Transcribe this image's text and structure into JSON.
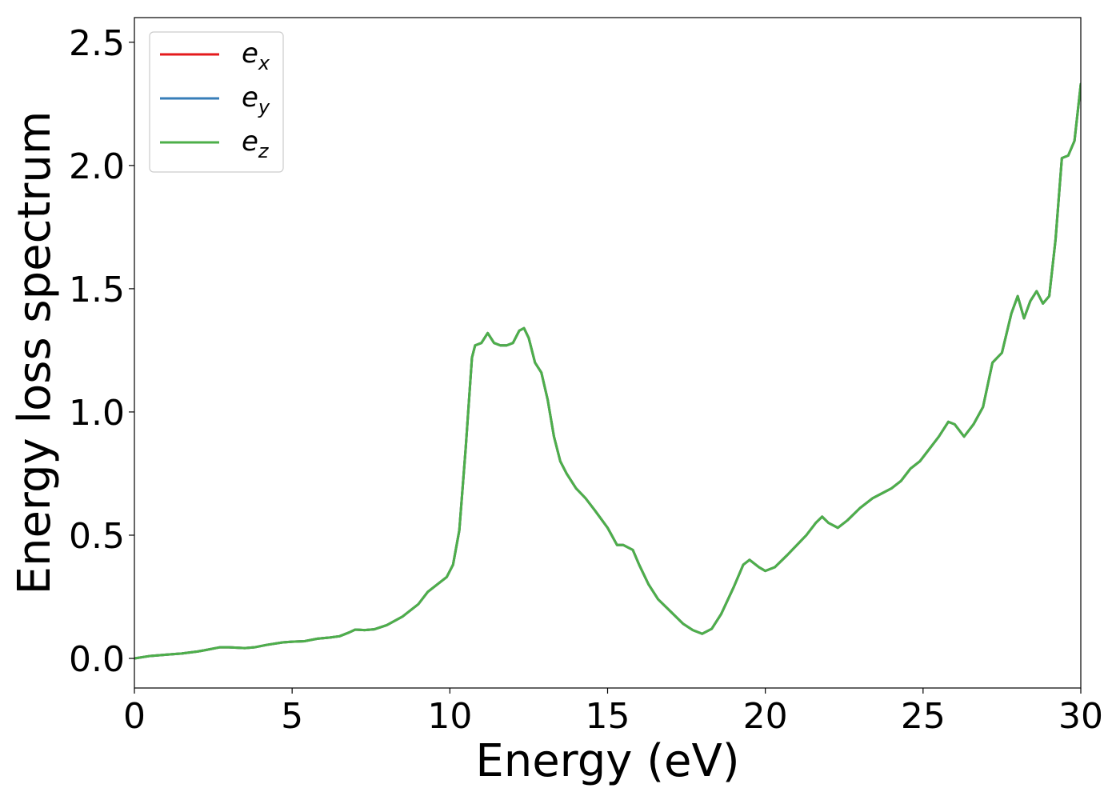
{
  "chart_data": {
    "type": "line",
    "xlabel": "Energy (eV)",
    "ylabel": "Energy loss spectrum",
    "xlim": [
      0,
      30
    ],
    "ylim": [
      -0.12,
      2.6
    ],
    "xticks": [
      0,
      5,
      10,
      15,
      20,
      25,
      30
    ],
    "yticks": [
      0.0,
      0.5,
      1.0,
      1.5,
      2.0,
      2.5
    ],
    "xtick_labels": [
      "0",
      "5",
      "10",
      "15",
      "20",
      "25",
      "30"
    ],
    "ytick_labels": [
      "0.0",
      "0.5",
      "1.0",
      "1.5",
      "2.0",
      "2.5"
    ],
    "grid": false,
    "legend": {
      "position": "top-left",
      "entries": [
        {
          "base": "e",
          "sub": "x",
          "color": "#e41a1c"
        },
        {
          "base": "e",
          "sub": "y",
          "color": "#377eb8"
        },
        {
          "base": "e",
          "sub": "z",
          "color": "#4daf4a"
        }
      ]
    },
    "x": [
      0,
      0.5,
      1.0,
      1.5,
      2.0,
      2.3,
      2.7,
      3.0,
      3.5,
      3.8,
      4.2,
      4.7,
      5.0,
      5.4,
      5.8,
      6.2,
      6.5,
      6.8,
      7.0,
      7.3,
      7.6,
      8.0,
      8.5,
      9.0,
      9.3,
      9.6,
      9.9,
      10.1,
      10.3,
      10.5,
      10.7,
      10.8,
      11.0,
      11.2,
      11.4,
      11.6,
      11.8,
      12.0,
      12.2,
      12.35,
      12.5,
      12.7,
      12.9,
      13.1,
      13.3,
      13.5,
      13.7,
      14.0,
      14.3,
      14.6,
      15.0,
      15.3,
      15.5,
      15.8,
      16.0,
      16.3,
      16.6,
      17.0,
      17.4,
      17.7,
      18.0,
      18.3,
      18.6,
      19.0,
      19.3,
      19.5,
      19.8,
      20.0,
      20.3,
      20.7,
      21.0,
      21.3,
      21.6,
      21.8,
      22.0,
      22.3,
      22.6,
      23.0,
      23.4,
      23.7,
      24.0,
      24.3,
      24.6,
      24.9,
      25.2,
      25.5,
      25.8,
      26.0,
      26.3,
      26.6,
      26.9,
      27.2,
      27.5,
      27.8,
      28.0,
      28.2,
      28.4,
      28.6,
      28.8,
      29.0,
      29.2,
      29.4,
      29.6,
      29.8,
      30.0
    ],
    "series": [
      {
        "name": "e_x",
        "color": "#e41a1c",
        "values": [
          0.0,
          0.01,
          0.015,
          0.02,
          0.028,
          0.035,
          0.045,
          0.045,
          0.042,
          0.045,
          0.055,
          0.065,
          0.068,
          0.07,
          0.08,
          0.085,
          0.09,
          0.105,
          0.117,
          0.115,
          0.118,
          0.135,
          0.17,
          0.22,
          0.27,
          0.3,
          0.33,
          0.38,
          0.52,
          0.85,
          1.22,
          1.27,
          1.28,
          1.32,
          1.28,
          1.27,
          1.27,
          1.28,
          1.33,
          1.34,
          1.3,
          1.2,
          1.16,
          1.05,
          0.9,
          0.8,
          0.75,
          0.69,
          0.65,
          0.6,
          0.53,
          0.46,
          0.46,
          0.44,
          0.38,
          0.3,
          0.24,
          0.19,
          0.14,
          0.115,
          0.1,
          0.12,
          0.18,
          0.29,
          0.38,
          0.4,
          0.37,
          0.355,
          0.37,
          0.42,
          0.46,
          0.5,
          0.55,
          0.575,
          0.55,
          0.53,
          0.56,
          0.61,
          0.65,
          0.67,
          0.69,
          0.72,
          0.77,
          0.8,
          0.85,
          0.9,
          0.96,
          0.95,
          0.9,
          0.95,
          1.02,
          1.2,
          1.24,
          1.4,
          1.47,
          1.38,
          1.45,
          1.49,
          1.44,
          1.47,
          1.7,
          2.03,
          2.04,
          2.1,
          2.33
        ]
      },
      {
        "name": "e_y",
        "color": "#377eb8",
        "values": [
          0.0,
          0.01,
          0.015,
          0.02,
          0.028,
          0.035,
          0.045,
          0.045,
          0.042,
          0.045,
          0.055,
          0.065,
          0.068,
          0.07,
          0.08,
          0.085,
          0.09,
          0.105,
          0.117,
          0.115,
          0.118,
          0.135,
          0.17,
          0.22,
          0.27,
          0.3,
          0.33,
          0.38,
          0.52,
          0.85,
          1.22,
          1.27,
          1.28,
          1.32,
          1.28,
          1.27,
          1.27,
          1.28,
          1.33,
          1.34,
          1.3,
          1.2,
          1.16,
          1.05,
          0.9,
          0.8,
          0.75,
          0.69,
          0.65,
          0.6,
          0.53,
          0.46,
          0.46,
          0.44,
          0.38,
          0.3,
          0.24,
          0.19,
          0.14,
          0.115,
          0.1,
          0.12,
          0.18,
          0.29,
          0.38,
          0.4,
          0.37,
          0.355,
          0.37,
          0.42,
          0.46,
          0.5,
          0.55,
          0.575,
          0.55,
          0.53,
          0.56,
          0.61,
          0.65,
          0.67,
          0.69,
          0.72,
          0.77,
          0.8,
          0.85,
          0.9,
          0.96,
          0.95,
          0.9,
          0.95,
          1.02,
          1.2,
          1.24,
          1.4,
          1.47,
          1.38,
          1.45,
          1.49,
          1.44,
          1.47,
          1.7,
          2.03,
          2.04,
          2.1,
          2.33
        ]
      },
      {
        "name": "e_z",
        "color": "#4daf4a",
        "values": [
          0.0,
          0.01,
          0.015,
          0.02,
          0.028,
          0.035,
          0.045,
          0.045,
          0.042,
          0.045,
          0.055,
          0.065,
          0.068,
          0.07,
          0.08,
          0.085,
          0.09,
          0.105,
          0.117,
          0.115,
          0.118,
          0.135,
          0.17,
          0.22,
          0.27,
          0.3,
          0.33,
          0.38,
          0.52,
          0.85,
          1.22,
          1.27,
          1.28,
          1.32,
          1.28,
          1.27,
          1.27,
          1.28,
          1.33,
          1.34,
          1.3,
          1.2,
          1.16,
          1.05,
          0.9,
          0.8,
          0.75,
          0.69,
          0.65,
          0.6,
          0.53,
          0.46,
          0.46,
          0.44,
          0.38,
          0.3,
          0.24,
          0.19,
          0.14,
          0.115,
          0.1,
          0.12,
          0.18,
          0.29,
          0.38,
          0.4,
          0.37,
          0.355,
          0.37,
          0.42,
          0.46,
          0.5,
          0.55,
          0.575,
          0.55,
          0.53,
          0.56,
          0.61,
          0.65,
          0.67,
          0.69,
          0.72,
          0.77,
          0.8,
          0.85,
          0.9,
          0.96,
          0.95,
          0.9,
          0.95,
          1.02,
          1.2,
          1.24,
          1.4,
          1.47,
          1.38,
          1.45,
          1.49,
          1.44,
          1.47,
          1.7,
          2.03,
          2.04,
          2.1,
          2.33
        ]
      }
    ]
  }
}
